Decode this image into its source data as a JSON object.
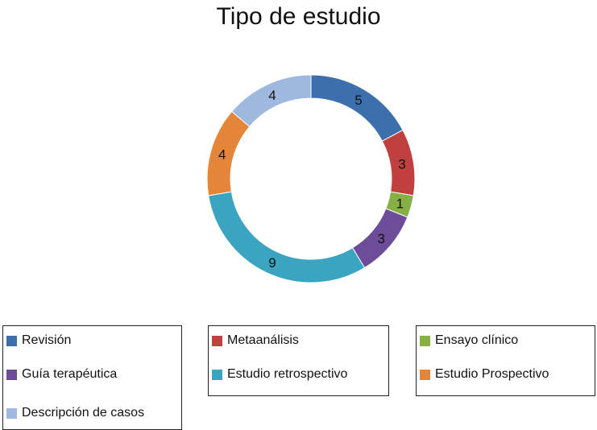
{
  "chart_data": {
    "type": "pie",
    "donut": true,
    "title": "Tipo de estudio",
    "categories": [
      "Revisión",
      "Metaanálisis",
      "Ensayo clínico",
      "Guía terapéutica",
      "Estudio retrospectivo",
      "Estudio Prospectivo",
      "Descripción de casos"
    ],
    "values": [
      5,
      3,
      1,
      3,
      9,
      4,
      4
    ],
    "colors": [
      "#3e6fad",
      "#c0403f",
      "#86b043",
      "#6d4c9a",
      "#3aa4c1",
      "#e5853a",
      "#9fb8df"
    ],
    "legend": "bottom",
    "data_labels": true
  }
}
